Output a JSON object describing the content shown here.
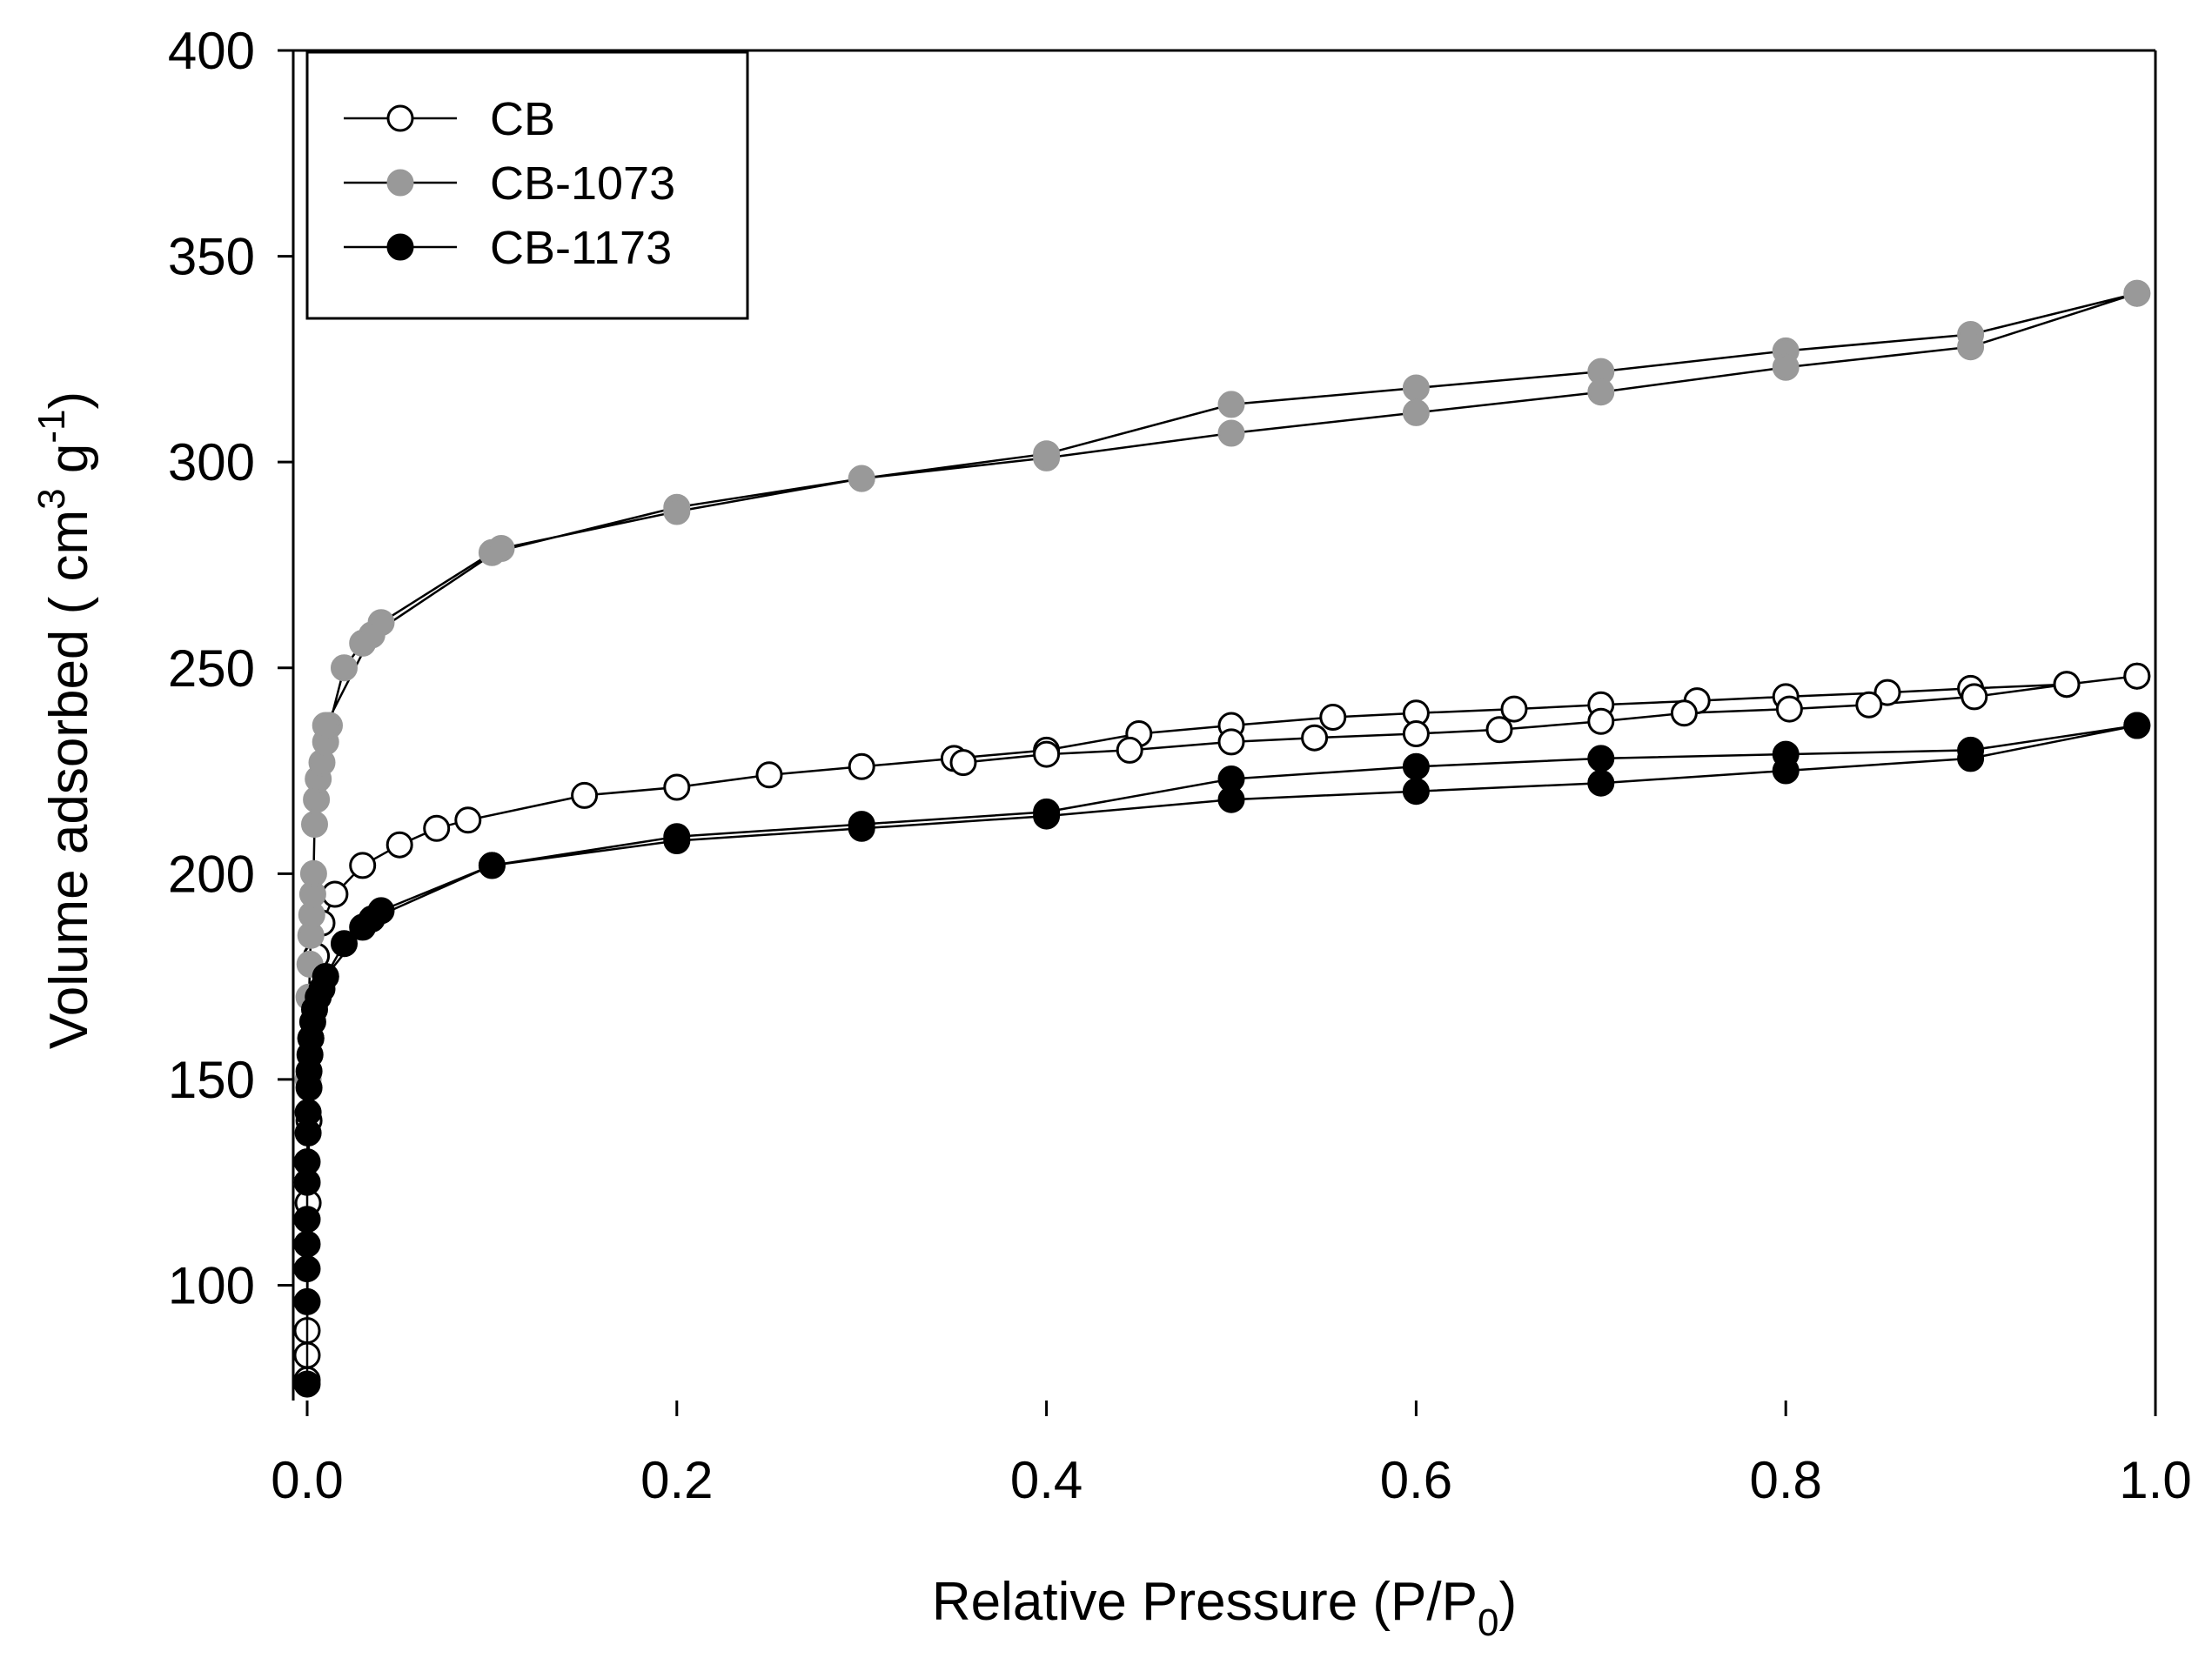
{
  "chart_data": {
    "type": "scatter",
    "title": "",
    "xlabel": {
      "main": "Relative Pressure (P/P",
      "sub": "0",
      "close": ")"
    },
    "ylabel": {
      "main": "Volume adsorbed ( cm",
      "sup1": "3",
      "mid": " g",
      "sup2": "-1",
      "close": ")"
    },
    "xlim": [
      0,
      1.0
    ],
    "ylim": [
      72,
      400
    ],
    "x_ticks": [
      0.0,
      0.2,
      0.4,
      0.6,
      0.8,
      1.0
    ],
    "x_tick_labels": [
      "0.0",
      "0.2",
      "0.4",
      "0.6",
      "0.8",
      "1.0"
    ],
    "y_ticks": [
      100,
      150,
      200,
      250,
      300,
      350,
      400
    ],
    "y_tick_labels": [
      "100",
      "150",
      "200",
      "250",
      "300",
      "350",
      "400"
    ],
    "legend_position": "top-left",
    "series": [
      {
        "name": "CB",
        "marker": "open-circle",
        "color": "#000000",
        "fill": "#ffffff",
        "adsorption": [
          [
            0.0,
            77
          ],
          [
            0.0,
            83
          ],
          [
            0.0,
            89
          ],
          [
            0.0005,
            120
          ],
          [
            0.001,
            140
          ],
          [
            0.002,
            160
          ],
          [
            0.005,
            180
          ],
          [
            0.008,
            188
          ],
          [
            0.015,
            195
          ],
          [
            0.03,
            202
          ],
          [
            0.05,
            207
          ],
          [
            0.07,
            211
          ],
          [
            0.087,
            213
          ],
          [
            0.15,
            219
          ],
          [
            0.2,
            221
          ],
          [
            0.25,
            224
          ],
          [
            0.3,
            226
          ],
          [
            0.35,
            228
          ],
          [
            0.4,
            230
          ],
          [
            0.45,
            234
          ],
          [
            0.5,
            236
          ],
          [
            0.555,
            238
          ],
          [
            0.6,
            239
          ],
          [
            0.653,
            240
          ],
          [
            0.7,
            241
          ],
          [
            0.752,
            242
          ],
          [
            0.8,
            243
          ],
          [
            0.855,
            244
          ],
          [
            0.9,
            245
          ],
          [
            0.952,
            246
          ],
          [
            0.99,
            248
          ]
        ],
        "desorption": [
          [
            0.99,
            248
          ],
          [
            0.952,
            246
          ],
          [
            0.902,
            243
          ],
          [
            0.845,
            241
          ],
          [
            0.802,
            240
          ],
          [
            0.745,
            239
          ],
          [
            0.7,
            237
          ],
          [
            0.645,
            235
          ],
          [
            0.6,
            234
          ],
          [
            0.545,
            233
          ],
          [
            0.5,
            232
          ],
          [
            0.445,
            230
          ],
          [
            0.4,
            229
          ],
          [
            0.355,
            227
          ]
        ]
      },
      {
        "name": "CB-1073",
        "marker": "filled-circle",
        "color": "#999999",
        "fill": "#999999",
        "adsorption": [
          [
            0.0,
            125
          ],
          [
            0.0005,
            150
          ],
          [
            0.001,
            170
          ],
          [
            0.0015,
            178
          ],
          [
            0.002,
            185
          ],
          [
            0.0025,
            190
          ],
          [
            0.003,
            195
          ],
          [
            0.0035,
            200
          ],
          [
            0.004,
            212
          ],
          [
            0.005,
            218
          ],
          [
            0.006,
            223
          ],
          [
            0.008,
            227
          ],
          [
            0.01,
            232
          ],
          [
            0.012,
            236
          ],
          [
            0.02,
            250
          ],
          [
            0.03,
            256
          ],
          [
            0.04,
            261
          ],
          [
            0.1,
            278
          ],
          [
            0.2,
            289
          ],
          [
            0.3,
            296
          ],
          [
            0.4,
            302
          ],
          [
            0.5,
            314
          ],
          [
            0.6,
            318
          ],
          [
            0.7,
            322
          ],
          [
            0.8,
            327
          ],
          [
            0.9,
            331
          ],
          [
            0.99,
            341
          ]
        ],
        "desorption": [
          [
            0.99,
            341
          ],
          [
            0.9,
            328
          ],
          [
            0.8,
            323
          ],
          [
            0.7,
            317
          ],
          [
            0.6,
            312
          ],
          [
            0.5,
            307
          ],
          [
            0.4,
            301
          ],
          [
            0.3,
            296
          ],
          [
            0.2,
            288
          ],
          [
            0.105,
            279
          ],
          [
            0.035,
            258
          ],
          [
            0.01,
            236
          ]
        ]
      },
      {
        "name": "CB-1173",
        "marker": "filled-circle",
        "color": "#000000",
        "fill": "#000000",
        "adsorption": [
          [
            0.0,
            76
          ],
          [
            0.0,
            96
          ],
          [
            0.0,
            104
          ],
          [
            0.0,
            110
          ],
          [
            0.0,
            116
          ],
          [
            0.0,
            125
          ],
          [
            0.0,
            130
          ],
          [
            0.0005,
            137
          ],
          [
            0.0005,
            142
          ],
          [
            0.001,
            148
          ],
          [
            0.001,
            152
          ],
          [
            0.0015,
            156
          ],
          [
            0.002,
            160
          ],
          [
            0.003,
            164
          ],
          [
            0.004,
            167
          ],
          [
            0.006,
            170
          ],
          [
            0.008,
            172
          ],
          [
            0.01,
            175
          ],
          [
            0.02,
            183
          ],
          [
            0.03,
            187
          ],
          [
            0.04,
            191
          ],
          [
            0.1,
            202
          ],
          [
            0.2,
            209
          ],
          [
            0.3,
            212
          ],
          [
            0.4,
            215
          ],
          [
            0.5,
            223
          ],
          [
            0.6,
            226
          ],
          [
            0.7,
            228
          ],
          [
            0.8,
            229
          ],
          [
            0.9,
            230
          ],
          [
            0.99,
            236
          ]
        ],
        "desorption": [
          [
            0.99,
            236
          ],
          [
            0.9,
            228
          ],
          [
            0.8,
            225
          ],
          [
            0.7,
            222
          ],
          [
            0.6,
            220
          ],
          [
            0.5,
            218
          ],
          [
            0.4,
            214
          ],
          [
            0.3,
            211
          ],
          [
            0.2,
            208
          ],
          [
            0.1,
            202
          ],
          [
            0.035,
            189
          ],
          [
            0.01,
            175
          ]
        ]
      }
    ]
  }
}
